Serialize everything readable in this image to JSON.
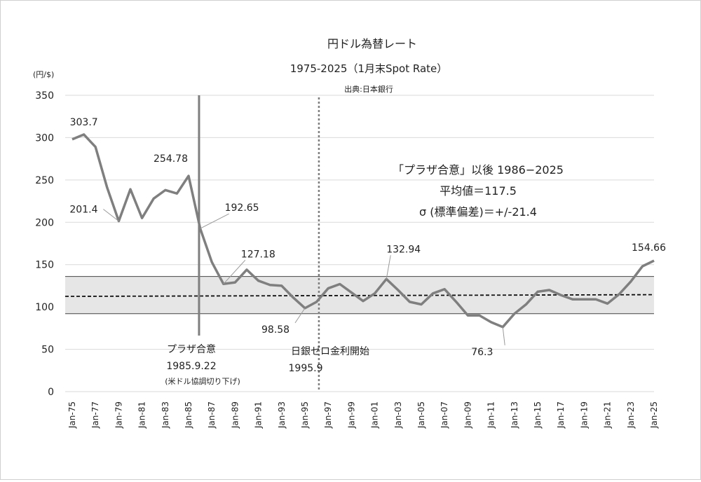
{
  "chart_data": {
    "type": "line",
    "title": "円ドル為替レート",
    "subtitle": "1975-2025（1月末Spot Rate）",
    "source": "出典:日本銀行",
    "ylabel": "(円/$)",
    "ylim": [
      0,
      350
    ],
    "yticks": [
      0,
      50,
      100,
      150,
      200,
      250,
      300,
      350
    ],
    "grid": true,
    "x": [
      1975,
      1976,
      1977,
      1978,
      1979,
      1980,
      1981,
      1982,
      1983,
      1984,
      1985,
      1986,
      1987,
      1988,
      1989,
      1990,
      1991,
      1992,
      1993,
      1994,
      1995,
      1996,
      1997,
      1998,
      1999,
      2000,
      2001,
      2002,
      2003,
      2004,
      2005,
      2006,
      2007,
      2008,
      2009,
      2010,
      2011,
      2012,
      2013,
      2014,
      2015,
      2016,
      2017,
      2018,
      2019,
      2020,
      2021,
      2022,
      2023,
      2024,
      2025
    ],
    "xtick_labels": [
      "Jan-75",
      "Jan-77",
      "Jan-79",
      "Jan-81",
      "Jan-83",
      "Jan-85",
      "Jan-87",
      "Jan-89",
      "Jan-91",
      "Jan-93",
      "Jan-95",
      "Jan-97",
      "Jan-99",
      "Jan-01",
      "Jan-03",
      "Jan-05",
      "Jan-07",
      "Jan-09",
      "Jan-11",
      "Jan-13",
      "Jan-15",
      "Jan-17",
      "Jan-19",
      "Jan-21",
      "Jan-23",
      "Jan-25"
    ],
    "values": [
      298,
      303.7,
      289,
      241,
      201.4,
      239,
      205,
      228,
      238,
      234,
      254.78,
      192.65,
      153,
      127.18,
      129,
      144,
      131,
      126,
      125,
      111,
      98.58,
      106,
      122,
      127,
      117,
      107,
      116,
      132.94,
      120,
      106,
      103,
      116,
      121,
      106,
      90,
      90,
      82,
      76.3,
      92,
      103,
      118,
      120,
      114,
      109,
      109,
      109,
      104,
      115,
      130,
      148,
      154.66
    ],
    "annotations": [
      {
        "text": "303.7",
        "year": 1976
      },
      {
        "text": "254.78",
        "year": 1985
      },
      {
        "text": "201.4",
        "year": 1979
      },
      {
        "text": "192.65",
        "year": 1986
      },
      {
        "text": "127.18",
        "year": 1988
      },
      {
        "text": "98.58",
        "year": 1995
      },
      {
        "text": "132.94",
        "year": 2002
      },
      {
        "text": "76.3",
        "year": 2012
      },
      {
        "text": "154.66",
        "year": 2025
      }
    ],
    "plaza": {
      "year": 1985.9,
      "label": "プラザ合意",
      "date": "1985.9.22",
      "note": "(米ドル協調切り下げ)"
    },
    "zero_rate": {
      "year": 1996.2,
      "label": "日銀ゼロ金利開始",
      "date": "1995.9"
    },
    "stats": {
      "line1": "「プラザ合意」以後 1986−2025",
      "line2": "平均値＝117.5",
      "line3": "σ (標準偏差)＝+/-21.4",
      "mean_start": 112.5,
      "mean_end": 114.5,
      "band_low": 92,
      "band_high": 136
    },
    "colors": {
      "line": "#7f7f7f",
      "band": "#e6e6e6",
      "grid": "#d9d9d9"
    }
  }
}
